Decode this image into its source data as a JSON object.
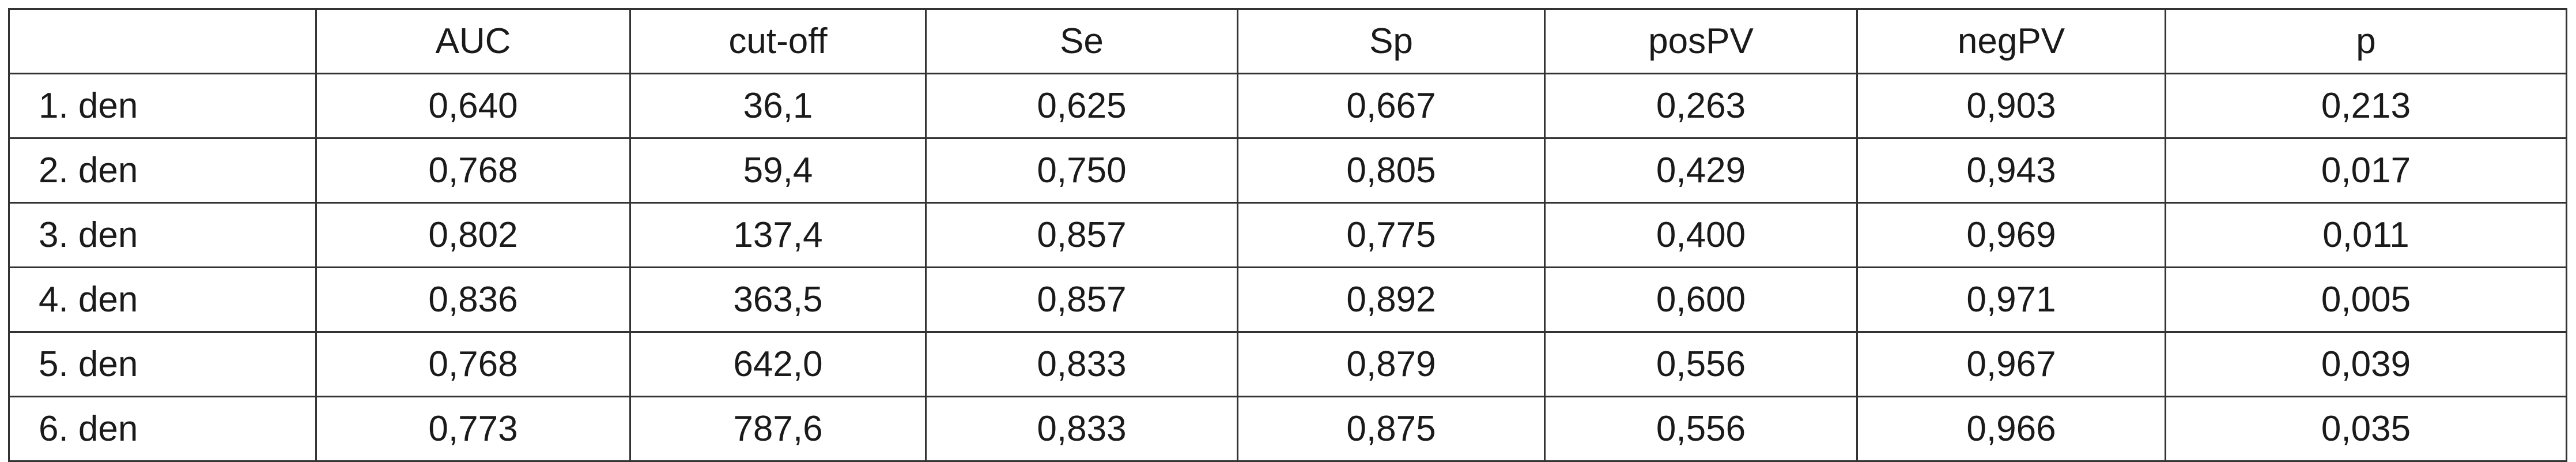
{
  "table": {
    "header": [
      "",
      "AUC",
      "cut-off",
      "Se",
      "Sp",
      "posPV",
      "negPV",
      "p"
    ],
    "rows": [
      [
        "1. den",
        "0,640",
        "36,1",
        "0,625",
        "0,667",
        "0,263",
        "0,903",
        "0,213"
      ],
      [
        "2. den",
        "0,768",
        "59,4",
        "0,750",
        "0,805",
        "0,429",
        "0,943",
        "0,017"
      ],
      [
        "3. den",
        "0,802",
        "137,4",
        "0,857",
        "0,775",
        "0,400",
        "0,969",
        "0,011"
      ],
      [
        "4. den",
        "0,836",
        "363,5",
        "0,857",
        "0,892",
        "0,600",
        "0,971",
        "0,005"
      ],
      [
        "5. den",
        "0,768",
        "642,0",
        "0,833",
        "0,879",
        "0,556",
        "0,967",
        "0,039"
      ],
      [
        "6. den",
        "0,773",
        "787,6",
        "0,833",
        "0,875",
        "0,556",
        "0,966",
        "0,035"
      ]
    ]
  }
}
